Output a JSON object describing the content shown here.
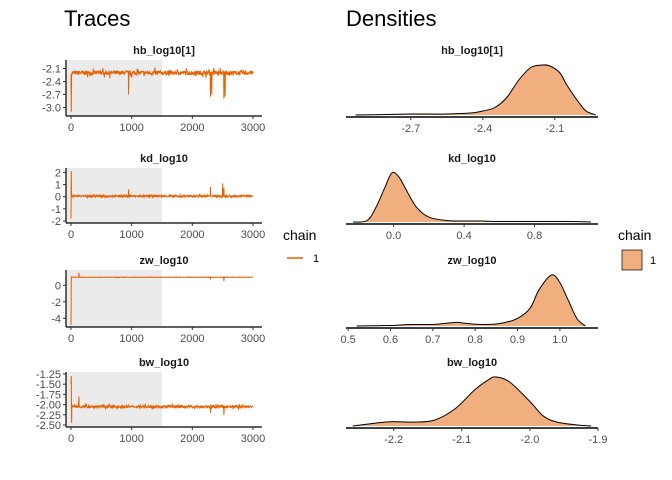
{
  "titles": {
    "traces": "Traces",
    "densities": "Densities"
  },
  "colors": {
    "trace": "#E66101",
    "density_fill": "#F1AF80",
    "warmup": "#EBEBEB",
    "axis": "#000000"
  },
  "legend_traces": {
    "title": "chain",
    "label": "1"
  },
  "legend_densities": {
    "title": "chain",
    "label": "1"
  },
  "chart_data": [
    {
      "type": "line",
      "panel": "trace",
      "title": "hb_log10[1]",
      "xlim": [
        0,
        3000
      ],
      "xticks": [
        0,
        1000,
        2000,
        3000
      ],
      "ylim": [
        -3.15,
        -1.95
      ],
      "yticks": [
        -3.0,
        -2.7,
        -2.4,
        -2.1
      ],
      "ytick_labels": [
        "-3.0",
        "-2.7",
        "-2.4",
        "-2.1"
      ],
      "warmup_end": 1500,
      "series": [
        {
          "name": "chain 1",
          "center": -2.2,
          "spread": 0.05,
          "init": [
            -2.25,
            -3.1,
            -2.2
          ],
          "spikes": [
            [
              950,
              -2.7
            ],
            [
              2300,
              -2.75
            ],
            [
              2320,
              -2.7
            ],
            [
              2520,
              -2.8
            ],
            [
              2540,
              -2.75
            ]
          ]
        }
      ]
    },
    {
      "type": "line",
      "panel": "trace",
      "title": "kd_log10",
      "xlim": [
        0,
        3000
      ],
      "xticks": [
        0,
        1000,
        2000,
        3000
      ],
      "ylim": [
        -2,
        2.2
      ],
      "yticks": [
        -2,
        -1,
        0,
        1,
        2
      ],
      "ytick_labels": [
        "-2",
        "-1",
        "0",
        "1",
        "2"
      ],
      "warmup_end": 1500,
      "series": [
        {
          "name": "chain 1",
          "center": 0.05,
          "spread": 0.08,
          "init": [
            -1.8,
            2.1,
            0.2
          ],
          "spikes": [
            [
              950,
              0.6
            ],
            [
              2300,
              0.8
            ],
            [
              2500,
              1.1
            ],
            [
              2520,
              0.7
            ]
          ]
        }
      ]
    },
    {
      "type": "line",
      "panel": "trace",
      "title": "zw_log10",
      "xlim": [
        0,
        3000
      ],
      "xticks": [
        0,
        1000,
        2000,
        3000
      ],
      "ylim": [
        -4.8,
        1.6
      ],
      "yticks": [
        -4,
        -2,
        0
      ],
      "ytick_labels": [
        "-4",
        "-2",
        "0"
      ],
      "warmup_end": 1500,
      "series": [
        {
          "name": "chain 1",
          "center": 0.97,
          "spread": 0.02,
          "init": [
            -4.8,
            0.6,
            1.0
          ],
          "spikes": [
            [
              130,
              1.5
            ],
            [
              2520,
              0.5
            ],
            [
              2300,
              0.7
            ]
          ]
        }
      ]
    },
    {
      "type": "line",
      "panel": "trace",
      "title": "bw_log10",
      "xlim": [
        0,
        3000
      ],
      "xticks": [
        0,
        1000,
        2000,
        3000
      ],
      "ylim": [
        -2.5,
        -1.25
      ],
      "yticks": [
        -2.5,
        -2.25,
        -2.0,
        -1.75,
        -1.5,
        -1.25
      ],
      "ytick_labels": [
        "-2.50",
        "-2.25",
        "-2.00",
        "-1.75",
        "-1.50",
        "-1.25"
      ],
      "warmup_end": 1500,
      "series": [
        {
          "name": "chain 1",
          "center": -2.05,
          "spread": 0.03,
          "init": [
            -1.5,
            -1.3,
            -2.45,
            -2.0
          ],
          "spikes": [
            [
              130,
              -1.8
            ],
            [
              2300,
              -2.2
            ],
            [
              2520,
              -2.25
            ]
          ]
        }
      ]
    },
    {
      "type": "area",
      "panel": "density",
      "title": "hb_log10[1]",
      "xlim": [
        -2.97,
        -1.92
      ],
      "xticks": [
        -2.7,
        -2.4,
        -2.1
      ],
      "xtick_labels": [
        "-2.7",
        "-2.4",
        "-2.1"
      ],
      "x": [
        -2.93,
        -2.8,
        -2.7,
        -2.65,
        -2.55,
        -2.45,
        -2.4,
        -2.35,
        -2.3,
        -2.25,
        -2.2,
        -2.15,
        -2.12,
        -2.08,
        -2.05,
        -2.0,
        -1.97,
        -1.93
      ],
      "y": [
        0.0,
        0.01,
        0.02,
        0.02,
        0.02,
        0.04,
        0.08,
        0.15,
        0.35,
        0.7,
        0.95,
        1.0,
        0.98,
        0.85,
        0.6,
        0.25,
        0.08,
        0.0
      ]
    },
    {
      "type": "area",
      "panel": "density",
      "title": "kd_log10",
      "xlim": [
        -0.27,
        1.16
      ],
      "xticks": [
        0.0,
        0.4,
        0.8
      ],
      "xtick_labels": [
        "0.0",
        "0.4",
        "0.8"
      ],
      "x": [
        -0.23,
        -0.15,
        -0.1,
        -0.05,
        -0.01,
        0.03,
        0.08,
        0.13,
        0.2,
        0.3,
        0.4,
        0.5,
        0.6,
        0.8,
        1.0,
        1.12
      ],
      "y": [
        0.0,
        0.03,
        0.3,
        0.7,
        1.0,
        0.92,
        0.6,
        0.3,
        0.1,
        0.03,
        0.02,
        0.02,
        0.01,
        0.01,
        0.01,
        0.0
      ]
    },
    {
      "type": "area",
      "panel": "density",
      "title": "zw_log10",
      "xlim": [
        0.495,
        1.09
      ],
      "xticks": [
        0.5,
        0.6,
        0.7,
        0.8,
        0.9,
        1.0
      ],
      "xtick_labels": [
        "0.5",
        "0.6",
        "0.7",
        "0.8",
        "0.9",
        "1.0"
      ],
      "x": [
        0.52,
        0.6,
        0.65,
        0.7,
        0.74,
        0.76,
        0.78,
        0.82,
        0.86,
        0.9,
        0.93,
        0.95,
        0.98,
        1.0,
        1.02,
        1.04,
        1.06
      ],
      "y": [
        0.0,
        0.01,
        0.03,
        0.03,
        0.06,
        0.07,
        0.05,
        0.03,
        0.05,
        0.15,
        0.35,
        0.7,
        1.0,
        0.85,
        0.5,
        0.15,
        0.0
      ]
    },
    {
      "type": "area",
      "panel": "density",
      "title": "bw_log10",
      "xlim": [
        -2.27,
        -1.9
      ],
      "xticks": [
        -2.2,
        -2.1,
        -2.0,
        -1.9
      ],
      "xtick_labels": [
        "-2.2",
        "-2.1",
        "-2.0",
        "-1.9"
      ],
      "x": [
        -2.26,
        -2.22,
        -2.2,
        -2.17,
        -2.14,
        -2.11,
        -2.08,
        -2.06,
        -2.05,
        -2.03,
        -2.0,
        -1.98,
        -1.96,
        -1.93,
        -1.91
      ],
      "y": [
        0.0,
        0.07,
        0.09,
        0.08,
        0.12,
        0.35,
        0.75,
        0.95,
        1.0,
        0.9,
        0.5,
        0.2,
        0.08,
        0.02,
        0.0
      ]
    }
  ]
}
